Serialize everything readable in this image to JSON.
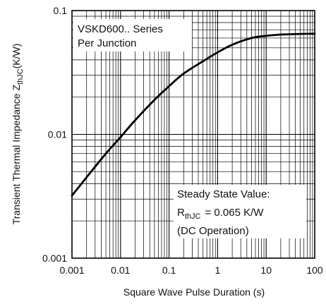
{
  "chart_data": {
    "type": "line",
    "title": "",
    "xlabel": "Square Wave Pulse Duration (s)",
    "ylabel": {
      "main": "Transient Thermal Impedance Z",
      "sub": "thJC",
      "unit": "(K/W)"
    },
    "x_scale": "log",
    "y_scale": "log",
    "xlim": [
      0.001,
      100
    ],
    "ylim": [
      0.001,
      0.1
    ],
    "grid": true,
    "x_ticks": [
      {
        "value": 0.001,
        "label": "0.001"
      },
      {
        "value": 0.01,
        "label": "0.01"
      },
      {
        "value": 0.1,
        "label": "0.1"
      },
      {
        "value": 1,
        "label": "1"
      },
      {
        "value": 10,
        "label": "10"
      },
      {
        "value": 100,
        "label": "100"
      }
    ],
    "y_ticks": [
      {
        "value": 0.001,
        "label": "0.001"
      },
      {
        "value": 0.01,
        "label": "0.01"
      },
      {
        "value": 0.1,
        "label": "0.1"
      }
    ],
    "series": [
      {
        "x": [
          0.001,
          0.002,
          0.005,
          0.01,
          0.02,
          0.05,
          0.1,
          0.2,
          0.5,
          1,
          2,
          5,
          10,
          20,
          50,
          100
        ],
        "y": [
          0.0032,
          0.0045,
          0.007,
          0.0095,
          0.013,
          0.019,
          0.0245,
          0.031,
          0.039,
          0.046,
          0.053,
          0.06,
          0.0625,
          0.064,
          0.0648,
          0.065
        ],
        "color": "#000000"
      }
    ],
    "annotations": {
      "series_note": {
        "line1": "VSKD600.. Series",
        "line2": "Per Junction"
      },
      "steady_state": {
        "line1": "Steady State Value:",
        "r_main": "R",
        "r_sub": "thJC",
        "r_value": "= 0.065 K/W",
        "line3": "(DC Operation)"
      }
    }
  }
}
